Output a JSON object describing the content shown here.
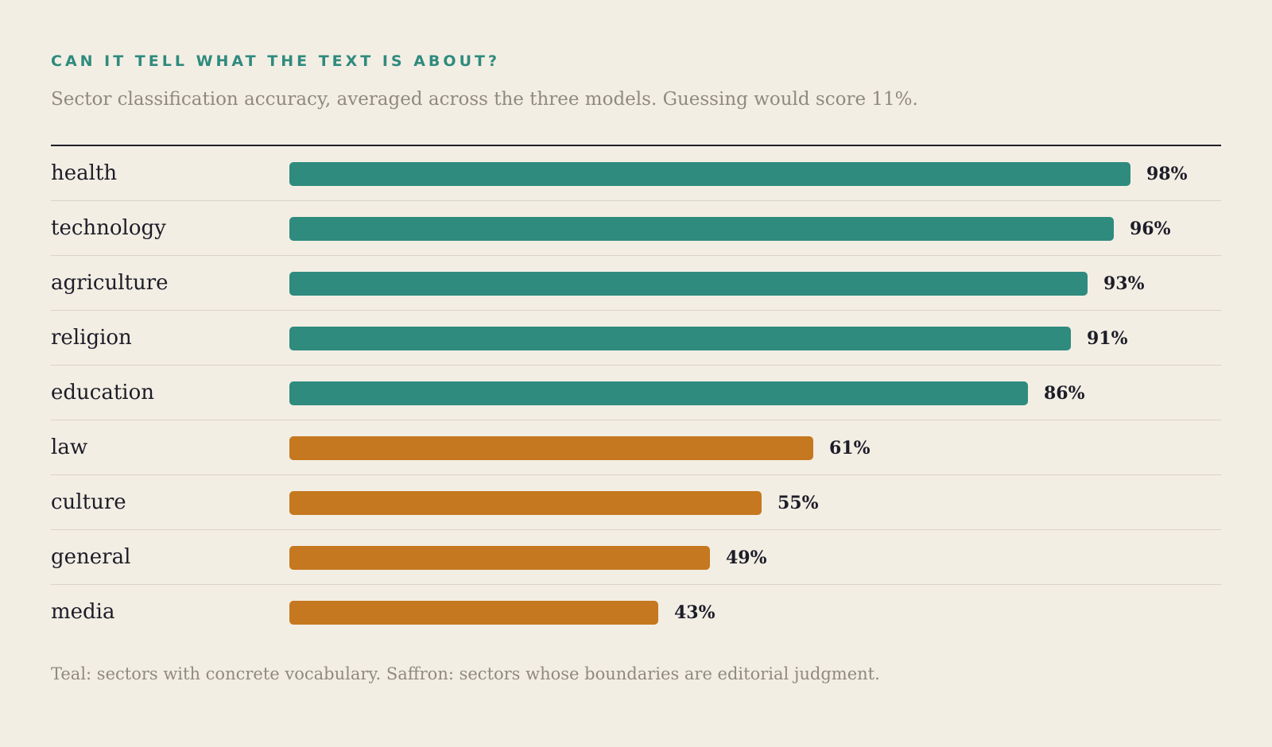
{
  "header": {
    "eyebrow": "CAN IT TELL WHAT THE TEXT IS ABOUT?",
    "subtitle": "Sector classification accuracy, averaged across the three models. Guessing would score 11%."
  },
  "colors": {
    "concrete": "#2e8b7e",
    "editorial": "#c5781f"
  },
  "chart_data": {
    "type": "bar",
    "orientation": "horizontal",
    "categories": [
      "health",
      "technology",
      "agriculture",
      "religion",
      "education",
      "law",
      "culture",
      "general",
      "media"
    ],
    "values": [
      98,
      96,
      93,
      91,
      86,
      61,
      55,
      49,
      43
    ],
    "value_labels": [
      "98%",
      "96%",
      "93%",
      "91%",
      "86%",
      "61%",
      "55%",
      "49%",
      "43%"
    ],
    "groups": [
      "concrete",
      "concrete",
      "concrete",
      "concrete",
      "concrete",
      "editorial",
      "editorial",
      "editorial",
      "editorial"
    ],
    "xlim": [
      0,
      100
    ],
    "grid": false
  },
  "footer": {
    "note": "Teal: sectors with concrete vocabulary. Saffron: sectors whose boundaries are editorial judgment."
  }
}
